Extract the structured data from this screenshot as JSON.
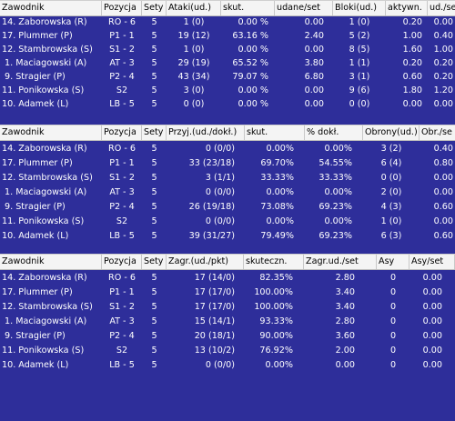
{
  "tables": [
    {
      "columns": [
        "Zawodnik",
        "Pozycja",
        "Sety",
        "Ataki(ud.)",
        "skut.",
        "udane/set",
        "Bloki(ud.)",
        "aktywn.",
        "ud./set"
      ],
      "rows": [
        [
          "14. Zaborowska (R)",
          "RO - 6",
          "5",
          "1 (0)",
          "0.00 %",
          "0.00",
          "1 (0)",
          "0.20",
          "0.00"
        ],
        [
          "17. Plummer (P)",
          "P1 - 1",
          "5",
          "19 (12)",
          "63.16 %",
          "2.40",
          "5 (2)",
          "1.00",
          "0.40"
        ],
        [
          "12. Stambrowska (S)",
          "S1 - 2",
          "5",
          "1 (0)",
          "0.00 %",
          "0.00",
          "8 (5)",
          "1.60",
          "1.00"
        ],
        [
          "1. Maciagowski (A)",
          "AT - 3",
          "5",
          "29 (19)",
          "65.52 %",
          "3.80",
          "1 (1)",
          "0.20",
          "0.20"
        ],
        [
          "9. Stragier (P)",
          "P2 - 4",
          "5",
          "43 (34)",
          "79.07 %",
          "6.80",
          "3 (1)",
          "0.60",
          "0.20"
        ],
        [
          "11. Ponikowska (S)",
          "S2",
          "5",
          "3 (0)",
          "0.00 %",
          "0.00",
          "9 (6)",
          "1.80",
          "1.20"
        ],
        [
          "10. Adamek (L)",
          "LB - 5",
          "5",
          "0 (0)",
          "0.00 %",
          "0.00",
          "0 (0)",
          "0.00",
          "0.00"
        ]
      ]
    },
    {
      "columns": [
        "Zawodnik",
        "Pozycja",
        "Sety",
        "Przyj.(ud./dokł.)",
        "skut.",
        "% dokł.",
        "Obrony(ud.)",
        "Obr./se"
      ],
      "rows": [
        [
          "14. Zaborowska (R)",
          "RO - 6",
          "5",
          "0 (0/0)",
          "0.00%",
          "0.00%",
          "3 (2)",
          "0.40"
        ],
        [
          "17. Plummer (P)",
          "P1 - 1",
          "5",
          "33 (23/18)",
          "69.70%",
          "54.55%",
          "6 (4)",
          "0.80"
        ],
        [
          "12. Stambrowska (S)",
          "S1 - 2",
          "5",
          "3 (1/1)",
          "33.33%",
          "33.33%",
          "0 (0)",
          "0.00"
        ],
        [
          "1. Maciagowski (A)",
          "AT - 3",
          "5",
          "0 (0/0)",
          "0.00%",
          "0.00%",
          "2 (0)",
          "0.00"
        ],
        [
          "9. Stragier (P)",
          "P2 - 4",
          "5",
          "26 (19/18)",
          "73.08%",
          "69.23%",
          "4 (3)",
          "0.60"
        ],
        [
          "11. Ponikowska (S)",
          "S2",
          "5",
          "0 (0/0)",
          "0.00%",
          "0.00%",
          "1 (0)",
          "0.00"
        ],
        [
          "10. Adamek (L)",
          "LB - 5",
          "5",
          "39 (31/27)",
          "79.49%",
          "69.23%",
          "6 (3)",
          "0.60"
        ]
      ]
    },
    {
      "columns": [
        "Zawodnik",
        "Pozycja",
        "Sety",
        "Zagr.(ud./pkt)",
        "skuteczn.",
        "Zagr.ud./set",
        "Asy",
        "Asy/set"
      ],
      "rows": [
        [
          "14. Zaborowska (R)",
          "RO - 6",
          "5",
          "17 (14/0)",
          "82.35%",
          "2.80",
          "0",
          "0.00"
        ],
        [
          "17. Plummer (P)",
          "P1 - 1",
          "5",
          "17 (17/0)",
          "100.00%",
          "3.40",
          "0",
          "0.00"
        ],
        [
          "12. Stambrowska (S)",
          "S1 - 2",
          "5",
          "17 (17/0)",
          "100.00%",
          "3.40",
          "0",
          "0.00"
        ],
        [
          "1. Maciagowski (A)",
          "AT - 3",
          "5",
          "15 (14/1)",
          "93.33%",
          "2.80",
          "0",
          "0.00"
        ],
        [
          "9. Stragier (P)",
          "P2 - 4",
          "5",
          "20 (18/1)",
          "90.00%",
          "3.60",
          "0",
          "0.00"
        ],
        [
          "11. Ponikowska (S)",
          "S2",
          "5",
          "13 (10/2)",
          "76.92%",
          "2.00",
          "0",
          "0.00"
        ],
        [
          "10. Adamek (L)",
          "LB - 5",
          "5",
          "0 (0/0)",
          "0.00%",
          "0.00",
          "0",
          "0.00"
        ]
      ]
    }
  ]
}
